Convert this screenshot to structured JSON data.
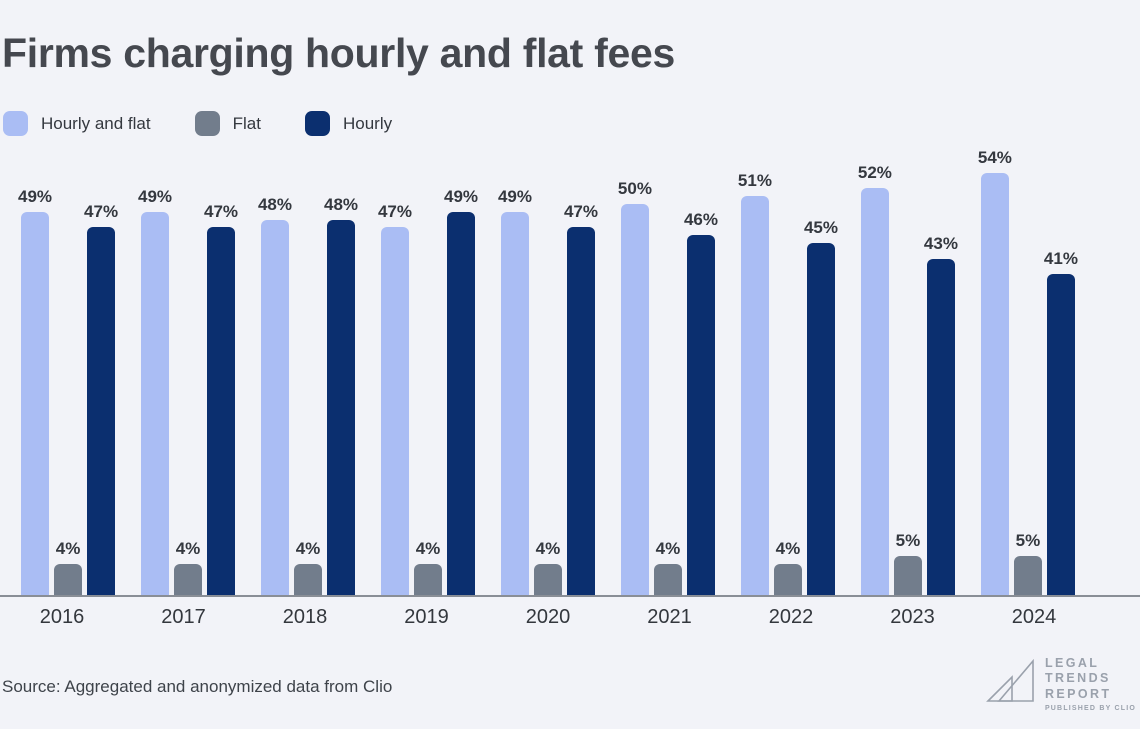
{
  "title": "Firms charging hourly and flat fees",
  "source": "Source: Aggregated and anonymized data from Clio",
  "logo": {
    "line1": "LEGAL",
    "line2": "TRENDS",
    "line3": "REPORT",
    "tagline": "PUBLISHED BY CLIO",
    "color": "#9aa1ac"
  },
  "colors": {
    "background": "#f2f3f8",
    "title_text": "#45484f",
    "label_text": "#34383f",
    "axis_line": "#898e96"
  },
  "chart_data": {
    "type": "bar",
    "title": "Firms charging hourly and flat fees",
    "categories": [
      "2016",
      "2017",
      "2018",
      "2019",
      "2020",
      "2021",
      "2022",
      "2023",
      "2024"
    ],
    "series": [
      {
        "name": "Hourly and flat",
        "color": "#aabdf4",
        "values": [
          49,
          49,
          48,
          47,
          49,
          50,
          51,
          52,
          54
        ]
      },
      {
        "name": "Flat",
        "color": "#727d8c",
        "values": [
          4,
          4,
          4,
          4,
          4,
          4,
          4,
          5,
          5
        ]
      },
      {
        "name": "Hourly",
        "color": "#0b2f6f",
        "values": [
          47,
          47,
          48,
          49,
          47,
          46,
          45,
          43,
          41
        ]
      }
    ],
    "value_suffix": "%",
    "xlabel": "",
    "ylabel": "",
    "ylim": [
      0,
      55
    ],
    "grid": false,
    "data_labels": true,
    "legend_position": "top-left"
  }
}
